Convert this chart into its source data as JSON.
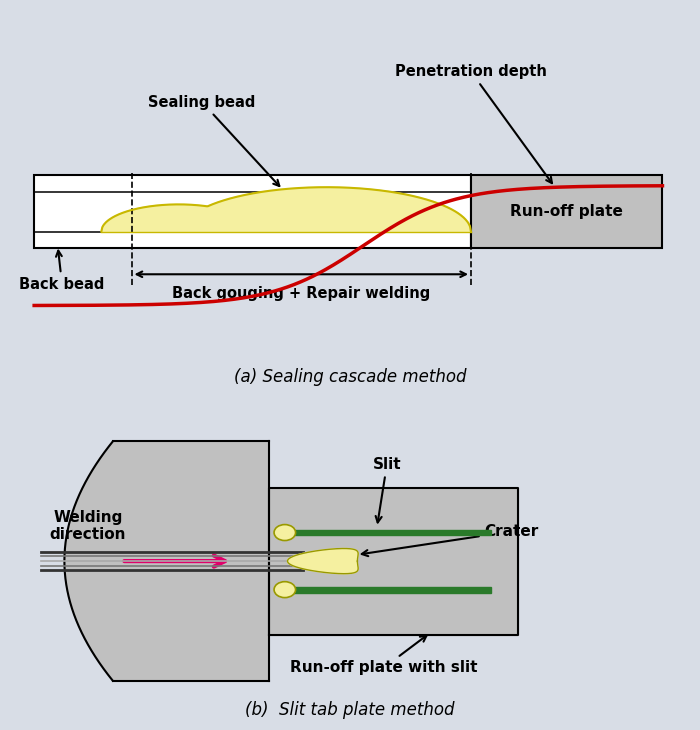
{
  "bg_color": "#d8dde6",
  "plate_color": "#c0c0c0",
  "bead_color": "#f5f0a0",
  "bead_edge_color": "#c8b800",
  "red_line_color": "#cc0000",
  "green_slit_color": "#2a7a2a",
  "magenta_arrow": "#e0006a",
  "title_a": "(a) Sealing cascade method",
  "title_b": "(b)  Slit tab plate method",
  "label_sealing_bead": "Sealing bead",
  "label_back_bead": "Back bead",
  "label_penetration": "Penetration depth",
  "label_runoff_a": "Run-off plate",
  "label_back_gouging": "Back gouging + Repair welding",
  "label_welding_dir": "Welding\ndirection",
  "label_slit": "Slit",
  "label_crater": "Crater",
  "label_runoff_b": "Run-off plate with slit"
}
